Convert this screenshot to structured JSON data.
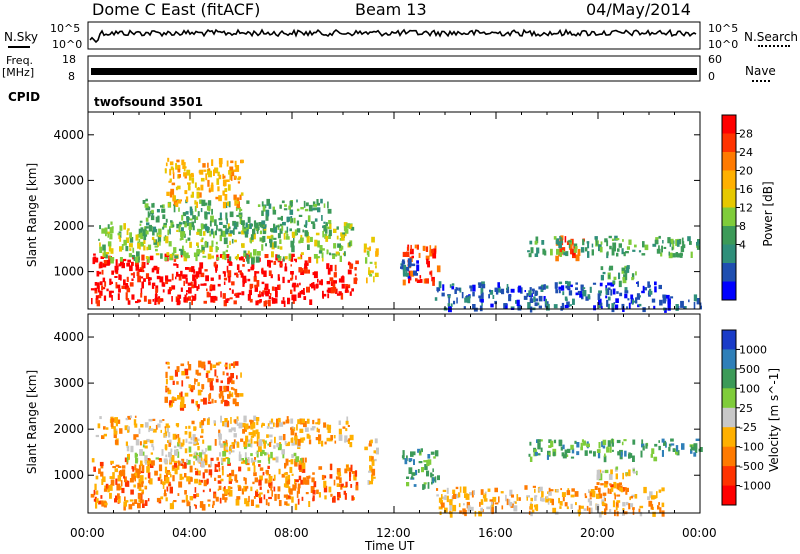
{
  "header": {
    "title": "Dome C East (fitACF)",
    "beam": "Beam 13",
    "date": "04/May/2014"
  },
  "mini_panels": {
    "nsky_label": "N.Sky",
    "nsearch_label": "N.Search",
    "log_top": "10^5",
    "log_bottom": "10^0",
    "freq_label": "Freq.",
    "freq_unit": "[MHz]",
    "freq_ticks": [
      "18",
      "8"
    ],
    "nave_label": "Nave",
    "nave_ticks": [
      "60",
      "0"
    ],
    "cpid_label": "CPID",
    "cpid_value": "twofsound 3501"
  },
  "x_axis": {
    "label": "Time UT",
    "ticks": [
      "00:00",
      "04:00",
      "08:00",
      "12:00",
      "16:00",
      "20:00",
      "00:00"
    ],
    "range_hours": [
      0,
      24
    ]
  },
  "chart_data": [
    {
      "type": "heatmap",
      "name": "power",
      "ylabel": "Slant Range [km]",
      "yticks": [
        1000,
        2000,
        3000,
        4000
      ],
      "ylim": [
        180,
        4500
      ],
      "xlim": [
        0,
        24
      ],
      "colorbar": {
        "label": "Power [dB]",
        "ticks": [
          "28",
          "24",
          "20",
          "16",
          "12",
          "8",
          "4"
        ],
        "colors": [
          "#ff0000",
          "#ff3300",
          "#ff7a00",
          "#ffb000",
          "#e6c800",
          "#7fcc3a",
          "#3c9a58",
          "#2f8f7a",
          "#1f4fb0",
          "#0000ff"
        ]
      },
      "regions": [
        {
          "t0": 0.1,
          "t1": 9.0,
          "r0": 350,
          "r1": 1400,
          "level": 0
        },
        {
          "t0": 9.0,
          "t1": 10.5,
          "r0": 500,
          "r1": 1250,
          "level": 0
        },
        {
          "t0": 0.3,
          "t1": 10.3,
          "r0": 1300,
          "r1": 2100,
          "level": 5
        },
        {
          "t0": 2.0,
          "t1": 9.5,
          "r0": 1900,
          "r1": 2600,
          "level": 6
        },
        {
          "t0": 3.0,
          "t1": 6.0,
          "r0": 2500,
          "r1": 3500,
          "level": 3
        },
        {
          "t0": 10.8,
          "t1": 11.3,
          "r0": 800,
          "r1": 1800,
          "level": 4
        },
        {
          "t0": 12.3,
          "t1": 13.7,
          "r0": 800,
          "r1": 1600,
          "level": 1
        },
        {
          "t0": 12.2,
          "t1": 12.9,
          "r0": 900,
          "r1": 1300,
          "level": 8
        },
        {
          "t0": 13.6,
          "t1": 22.5,
          "r0": 200,
          "r1": 800,
          "level": 8
        },
        {
          "t0": 18.3,
          "t1": 19.4,
          "r0": 1300,
          "r1": 1800,
          "level": 1
        },
        {
          "t0": 17.2,
          "t1": 24.0,
          "r0": 1400,
          "r1": 1800,
          "level": 6
        },
        {
          "t0": 19.8,
          "t1": 21.5,
          "r0": 800,
          "r1": 1150,
          "level": 6
        },
        {
          "t0": 22.5,
          "t1": 24.0,
          "r0": 200,
          "r1": 500,
          "level": 8
        }
      ]
    },
    {
      "type": "heatmap",
      "name": "velocity",
      "ylabel": "Slant Range [km]",
      "yticks": [
        1000,
        2000,
        3000,
        4000
      ],
      "ylim": [
        180,
        4500
      ],
      "xlim": [
        0,
        24
      ],
      "colorbar": {
        "label": "Velocity [m s^-1]",
        "ticks": [
          "1000",
          "500",
          "100",
          "25",
          "-25",
          "-100",
          "-500",
          "-1000"
        ],
        "colors": [
          "#1a3cc8",
          "#2f7fb8",
          "#3c9a58",
          "#7fcc3a",
          "#c8c8c8",
          "#ffb000",
          "#ff7a00",
          "#ff3300",
          "#ff0000"
        ]
      },
      "regions": [
        {
          "t0": 0.1,
          "t1": 9.0,
          "r0": 350,
          "r1": 1400,
          "level": 6
        },
        {
          "t0": 9.0,
          "t1": 10.5,
          "r0": 500,
          "r1": 1250,
          "level": 6
        },
        {
          "t0": 1.5,
          "t1": 8.5,
          "r0": 1300,
          "r1": 1800,
          "level": 4
        },
        {
          "t0": 0.3,
          "t1": 10.3,
          "r0": 1700,
          "r1": 2300,
          "level": 5
        },
        {
          "t0": 3.0,
          "t1": 6.0,
          "r0": 2500,
          "r1": 3500,
          "level": 6
        },
        {
          "t0": 10.8,
          "t1": 11.3,
          "r0": 800,
          "r1": 1800,
          "level": 5
        },
        {
          "t0": 12.3,
          "t1": 13.7,
          "r0": 800,
          "r1": 1600,
          "level": 2
        },
        {
          "t0": 13.6,
          "t1": 22.5,
          "r0": 200,
          "r1": 800,
          "level": 5
        },
        {
          "t0": 17.2,
          "t1": 24.0,
          "r0": 1400,
          "r1": 1800,
          "level": 2
        },
        {
          "t0": 19.8,
          "t1": 21.5,
          "r0": 1000,
          "r1": 1200,
          "level": 4
        },
        {
          "t0": 19.8,
          "t1": 21.5,
          "r0": 700,
          "r1": 900,
          "level": 6
        }
      ]
    }
  ]
}
